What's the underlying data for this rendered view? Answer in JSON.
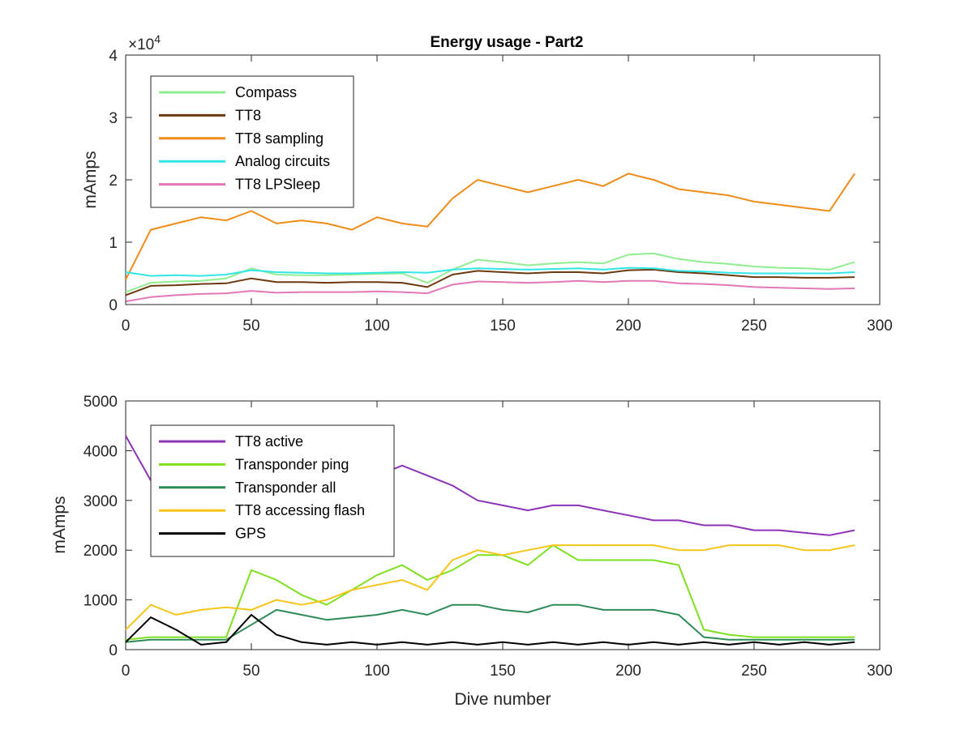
{
  "chart_data": [
    {
      "type": "line",
      "title": "Energy usage - Part2",
      "xlabel": "",
      "ylabel": "mAmps",
      "y_exponent_label": "×10",
      "y_exponent_power": "4",
      "xlim": [
        0,
        300
      ],
      "ylim": [
        0,
        40000
      ],
      "x_ticks": [
        0,
        50,
        100,
        150,
        200,
        250,
        300
      ],
      "x_tick_labels": [
        "0",
        "50",
        "100",
        "150",
        "200",
        "250",
        "300"
      ],
      "y_ticks": [
        0,
        10000,
        20000,
        30000,
        40000
      ],
      "y_tick_labels": [
        "0",
        "1",
        "2",
        "3",
        "4"
      ],
      "legend_position": "top-left",
      "x": [
        0,
        10,
        20,
        30,
        40,
        50,
        60,
        70,
        80,
        90,
        100,
        110,
        120,
        130,
        140,
        150,
        160,
        170,
        180,
        190,
        200,
        210,
        220,
        230,
        240,
        250,
        260,
        270,
        280,
        290
      ],
      "series": [
        {
          "name": "Compass",
          "color": "#90ee90",
          "values": [
            2000,
            3500,
            3700,
            3800,
            4200,
            5800,
            4800,
            4700,
            4700,
            4800,
            4900,
            5000,
            3500,
            5600,
            7200,
            6800,
            6300,
            6600,
            6800,
            6600,
            8000,
            8200,
            7300,
            6800,
            6500,
            6100,
            5900,
            5800,
            5600,
            6800
          ]
        },
        {
          "name": "TT8",
          "color": "#6b3a10",
          "values": [
            1500,
            3000,
            3100,
            3300,
            3400,
            4200,
            3600,
            3600,
            3500,
            3600,
            3600,
            3500,
            2800,
            4800,
            5400,
            5200,
            5000,
            5200,
            5200,
            5000,
            5500,
            5600,
            5200,
            5000,
            4700,
            4400,
            4400,
            4300,
            4300,
            4400
          ]
        },
        {
          "name": "TT8 sampling",
          "color": "#f08c1a",
          "values": [
            4000,
            12000,
            13000,
            14000,
            13500,
            15000,
            13000,
            13500,
            13000,
            12000,
            14000,
            13000,
            12500,
            17000,
            20000,
            19000,
            18000,
            19000,
            20000,
            19000,
            21000,
            20000,
            18500,
            18000,
            17500,
            16500,
            16000,
            15500,
            15000,
            21000
          ]
        },
        {
          "name": "Analog circuits",
          "color": "#33e6e6",
          "values": [
            5200,
            4600,
            4700,
            4600,
            4800,
            5500,
            5200,
            5100,
            5000,
            5000,
            5100,
            5200,
            5100,
            5600,
            5800,
            5700,
            5600,
            5700,
            5800,
            5600,
            5900,
            5800,
            5400,
            5300,
            5100,
            5000,
            5000,
            5000,
            5000,
            5200
          ]
        },
        {
          "name": "TT8 LPSleep",
          "color": "#e377b6",
          "values": [
            500,
            1200,
            1500,
            1700,
            1800,
            2200,
            1900,
            2000,
            2000,
            2000,
            2100,
            2000,
            1800,
            3200,
            3700,
            3600,
            3500,
            3600,
            3800,
            3600,
            3800,
            3800,
            3400,
            3300,
            3100,
            2800,
            2700,
            2600,
            2500,
            2600
          ]
        }
      ]
    },
    {
      "type": "line",
      "title": "",
      "xlabel": "Dive number",
      "ylabel": "mAmps",
      "xlim": [
        0,
        300
      ],
      "ylim": [
        0,
        5000
      ],
      "x_ticks": [
        0,
        50,
        100,
        150,
        200,
        250,
        300
      ],
      "x_tick_labels": [
        "0",
        "50",
        "100",
        "150",
        "200",
        "250",
        "300"
      ],
      "y_ticks": [
        0,
        1000,
        2000,
        3000,
        4000,
        5000
      ],
      "y_tick_labels": [
        "0",
        "1000",
        "2000",
        "3000",
        "4000",
        "5000"
      ],
      "legend_position": "top-left",
      "x": [
        0,
        10,
        20,
        30,
        40,
        50,
        60,
        70,
        80,
        90,
        100,
        110,
        120,
        130,
        140,
        150,
        160,
        170,
        180,
        190,
        200,
        210,
        220,
        230,
        240,
        250,
        260,
        270,
        280,
        290
      ],
      "series": [
        {
          "name": "TT8 active",
          "color": "#8c33b8",
          "values": [
            4300,
            3400,
            3500,
            3500,
            3500,
            3600,
            3600,
            3500,
            3500,
            3400,
            3500,
            3700,
            3500,
            3300,
            3000,
            2900,
            2800,
            2900,
            2900,
            2800,
            2700,
            2600,
            2600,
            2500,
            2500,
            2400,
            2400,
            2350,
            2300,
            2400
          ]
        },
        {
          "name": "Transponder ping",
          "color": "#7fe020",
          "values": [
            200,
            250,
            250,
            250,
            250,
            1600,
            1400,
            1100,
            900,
            1200,
            1500,
            1700,
            1400,
            1600,
            1900,
            1900,
            1700,
            2100,
            1800,
            1800,
            1800,
            1800,
            1700,
            400,
            300,
            250,
            250,
            250,
            250,
            250
          ]
        },
        {
          "name": "Transponder all",
          "color": "#2e8b57",
          "values": [
            150,
            200,
            200,
            200,
            200,
            500,
            800,
            700,
            600,
            650,
            700,
            800,
            700,
            900,
            900,
            800,
            750,
            900,
            900,
            800,
            800,
            800,
            700,
            250,
            200,
            200,
            200,
            200,
            200,
            200
          ]
        },
        {
          "name": "TT8 accessing flash",
          "color": "#f5c518",
          "values": [
            400,
            900,
            700,
            800,
            850,
            800,
            1000,
            900,
            1000,
            1200,
            1300,
            1400,
            1200,
            1800,
            2000,
            1900,
            2000,
            2100,
            2100,
            2100,
            2100,
            2100,
            2000,
            2000,
            2100,
            2100,
            2100,
            2000,
            2000,
            2100
          ]
        },
        {
          "name": "GPS",
          "color": "#000000",
          "values": [
            150,
            650,
            400,
            100,
            150,
            700,
            300,
            150,
            100,
            150,
            100,
            150,
            100,
            150,
            100,
            150,
            100,
            150,
            100,
            150,
            100,
            150,
            100,
            150,
            100,
            150,
            100,
            150,
            100,
            150
          ]
        }
      ]
    }
  ]
}
